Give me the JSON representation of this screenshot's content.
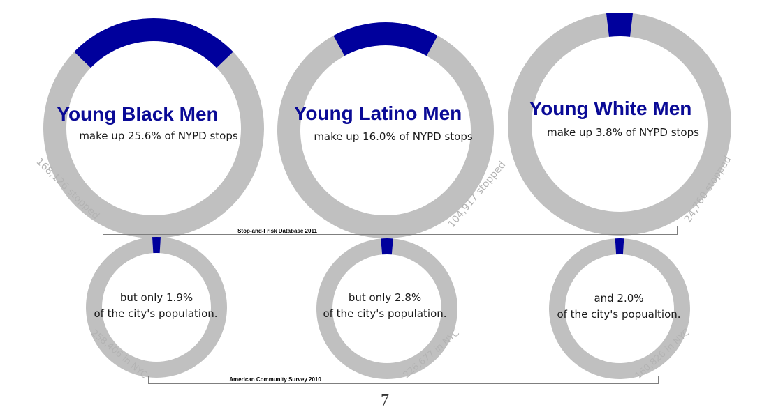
{
  "colors": {
    "highlight": "#00009c",
    "ring": "#c0c0c0",
    "headline": "#0a0a96",
    "count_text": "#b3b3b3",
    "bracket": "#7f7f7f"
  },
  "chart_data": [
    {
      "type": "pie",
      "title": "Young Black Men",
      "subtitle": "make up 25.6% of NYPD stops",
      "count_label": "168,126 stopped",
      "values": [
        25.6,
        74.4
      ],
      "source": "Stop-and-Frisk Database 2011"
    },
    {
      "type": "pie",
      "title": "Young Latino Men",
      "subtitle": "make up 16.0% of NYPD stops",
      "count_label": "104,917 stopped",
      "values": [
        16.0,
        84.0
      ],
      "source": "Stop-and-Frisk Database 2011"
    },
    {
      "type": "pie",
      "title": "Young White Men",
      "subtitle": "make up 3.8% of NYPD stops",
      "count_label": "24,760 stopped",
      "values": [
        3.8,
        96.2
      ],
      "source": "Stop-and-Frisk Database 2011"
    },
    {
      "type": "pie",
      "line1": "but only 1.9%",
      "line2": "of the city's population.",
      "count_label": "258,406 in NYC",
      "values": [
        1.9,
        98.1
      ],
      "source": "American Community Survey 2010"
    },
    {
      "type": "pie",
      "line1": "but only 2.8%",
      "line2": "of the city's population.",
      "count_label": "226,677 in NYC",
      "values": [
        2.8,
        97.2
      ],
      "source": "American Community Survey 2010"
    },
    {
      "type": "pie",
      "line1": "and 2.0%",
      "line2": "of the city's popualtion.",
      "count_label": "160,826 in NYC",
      "values": [
        2.0,
        98.0
      ],
      "source": "American Community Survey 2010"
    }
  ],
  "sources": {
    "top": "Stop-and-Frisk Database 2011",
    "bottom": "American Community Survey 2010"
  },
  "page_number": "7"
}
